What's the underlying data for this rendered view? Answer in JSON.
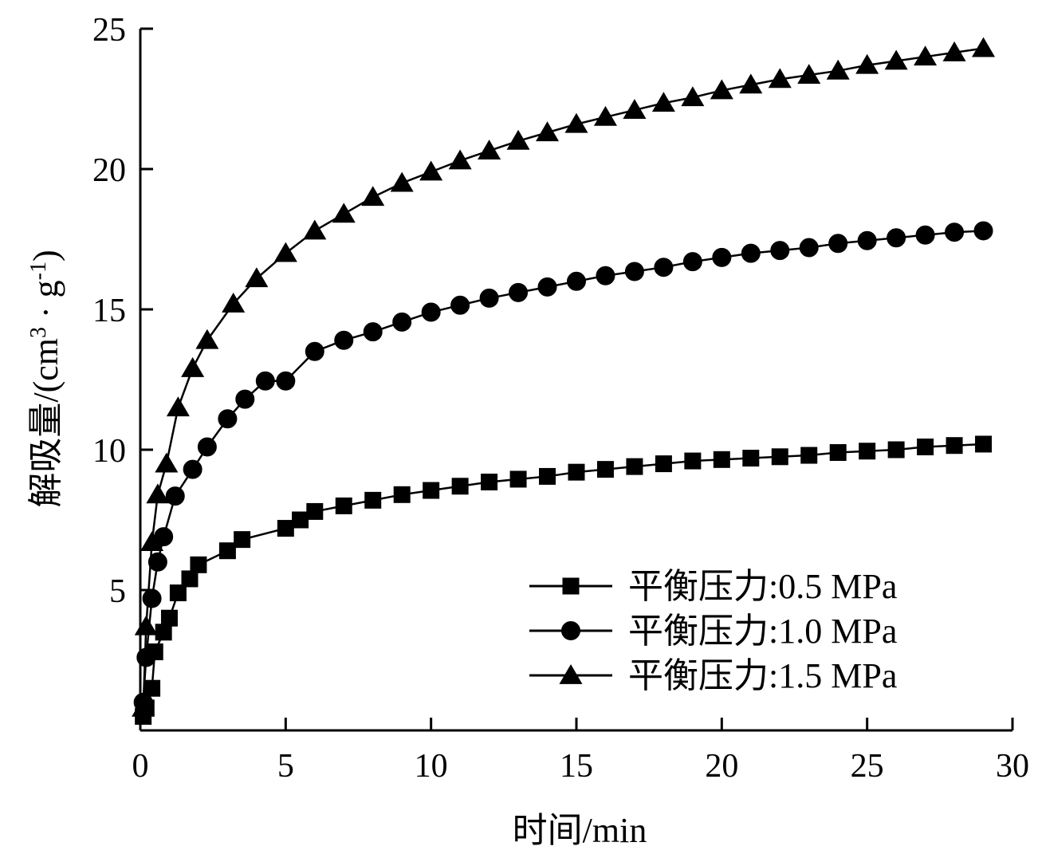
{
  "chart_data": {
    "type": "line",
    "xlabel": "时间/min",
    "ylabel": "解吸量/(cm³ · g⁻¹)",
    "ylabel_parts": {
      "prefix": "解吸量/(cm",
      "sup1": "3",
      "middle": " · g",
      "sup2": "-1",
      "suffix": ")"
    },
    "xlim": [
      0,
      30
    ],
    "ylim": [
      0,
      25
    ],
    "x_ticks": [
      0,
      5,
      10,
      15,
      20,
      25,
      30
    ],
    "x_tick_labels": [
      "0",
      "5",
      "10",
      "15",
      "20",
      "25",
      "30"
    ],
    "y_ticks": [
      5,
      10,
      15,
      20,
      25
    ],
    "y_tick_labels": [
      "5",
      "10",
      "15",
      "20",
      "25"
    ],
    "grid": false,
    "legend_position": "bottom-right",
    "series": [
      {
        "name": "平衡压力:0.5 MPa",
        "marker": "square",
        "x": [
          0.1,
          0.2,
          0.4,
          0.5,
          0.8,
          1,
          1.3,
          1.7,
          2,
          3,
          3.5,
          5,
          5.5,
          6,
          7,
          8,
          9,
          10,
          11,
          12,
          13,
          14,
          15,
          16,
          17,
          18,
          19,
          20,
          21,
          22,
          23,
          24,
          25,
          26,
          27,
          28,
          29
        ],
        "y": [
          0.5,
          0.8,
          1.5,
          2.8,
          3.5,
          4.0,
          4.9,
          5.4,
          5.9,
          6.4,
          6.8,
          7.2,
          7.5,
          7.8,
          8.0,
          8.2,
          8.4,
          8.55,
          8.7,
          8.85,
          8.95,
          9.05,
          9.2,
          9.3,
          9.4,
          9.5,
          9.6,
          9.65,
          9.7,
          9.75,
          9.8,
          9.9,
          9.95,
          10.0,
          10.1,
          10.15,
          10.2
        ]
      },
      {
        "name": "平衡压力:1.0 MPa",
        "marker": "circle",
        "x": [
          0.1,
          0.2,
          0.4,
          0.6,
          0.8,
          1.2,
          1.8,
          2.3,
          3,
          3.6,
          4.3,
          5,
          6,
          7,
          8,
          9,
          10,
          11,
          12,
          13,
          14,
          15,
          16,
          17,
          18,
          19,
          20,
          21,
          22,
          23,
          24,
          25,
          26,
          27,
          28,
          29
        ],
        "y": [
          1.0,
          2.6,
          4.7,
          6.0,
          6.9,
          8.35,
          9.3,
          10.1,
          11.1,
          11.8,
          12.45,
          12.45,
          13.5,
          13.9,
          14.2,
          14.55,
          14.9,
          15.15,
          15.4,
          15.6,
          15.8,
          16.0,
          16.2,
          16.35,
          16.5,
          16.7,
          16.85,
          17.0,
          17.1,
          17.2,
          17.35,
          17.45,
          17.55,
          17.65,
          17.75,
          17.8
        ],
        "x_display_note": ""
      },
      {
        "name": "平衡压力:1.5 MPa",
        "marker": "triangle",
        "x": [
          0.1,
          0.2,
          0.4,
          0.6,
          0.9,
          1.3,
          1.8,
          2.3,
          3.2,
          4,
          5,
          6,
          7,
          8,
          9,
          10,
          11,
          12,
          13,
          14,
          15,
          16,
          17,
          18,
          19,
          20,
          21,
          22,
          23,
          24,
          25,
          26,
          27,
          28,
          29
        ],
        "y": [
          0.8,
          3.7,
          6.7,
          8.4,
          9.5,
          11.5,
          12.9,
          13.9,
          15.2,
          16.1,
          17.0,
          17.8,
          18.4,
          19.0,
          19.5,
          19.9,
          20.3,
          20.65,
          21.0,
          21.3,
          21.6,
          21.85,
          22.1,
          22.35,
          22.55,
          22.8,
          23.0,
          23.2,
          23.35,
          23.5,
          23.7,
          23.85,
          24.0,
          24.15,
          24.3
        ]
      }
    ]
  }
}
